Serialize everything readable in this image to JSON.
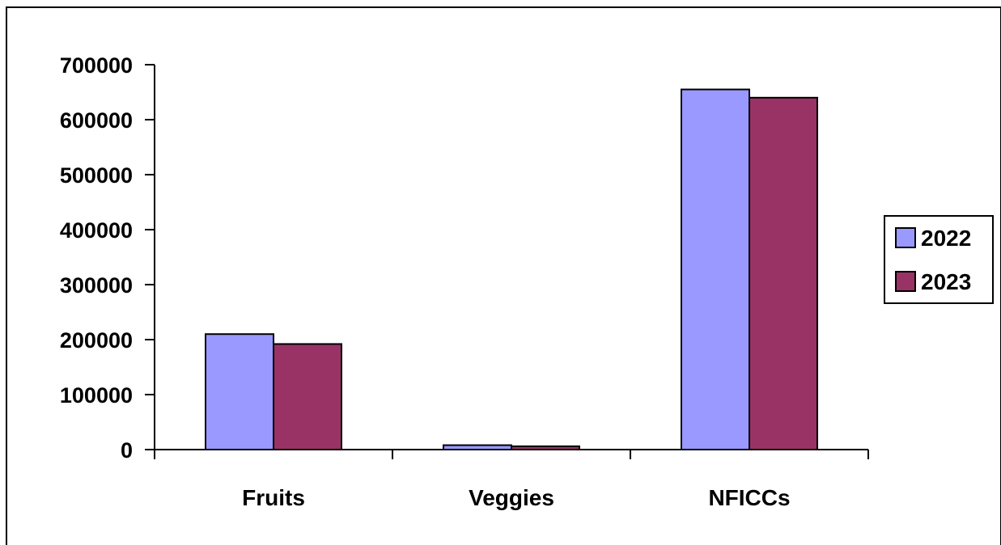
{
  "chart_data": {
    "type": "bar",
    "title": "",
    "xlabel": "",
    "ylabel": "",
    "categories": [
      "Fruits",
      "Veggies",
      "NFICCs"
    ],
    "series": [
      {
        "name": "2022",
        "color": "#9999ff",
        "values": [
          210000,
          8000,
          655000
        ]
      },
      {
        "name": "2023",
        "color": "#993366",
        "values": [
          192000,
          6000,
          640000
        ]
      }
    ],
    "ylim": [
      0,
      700000
    ],
    "y_ticks": [
      0,
      100000,
      200000,
      300000,
      400000,
      500000,
      600000,
      700000
    ],
    "y_tick_labels": [
      "0",
      "100000",
      "200000",
      "300000",
      "400000",
      "500000",
      "600000",
      "700000"
    ],
    "grid": false,
    "legend_position": "right"
  }
}
